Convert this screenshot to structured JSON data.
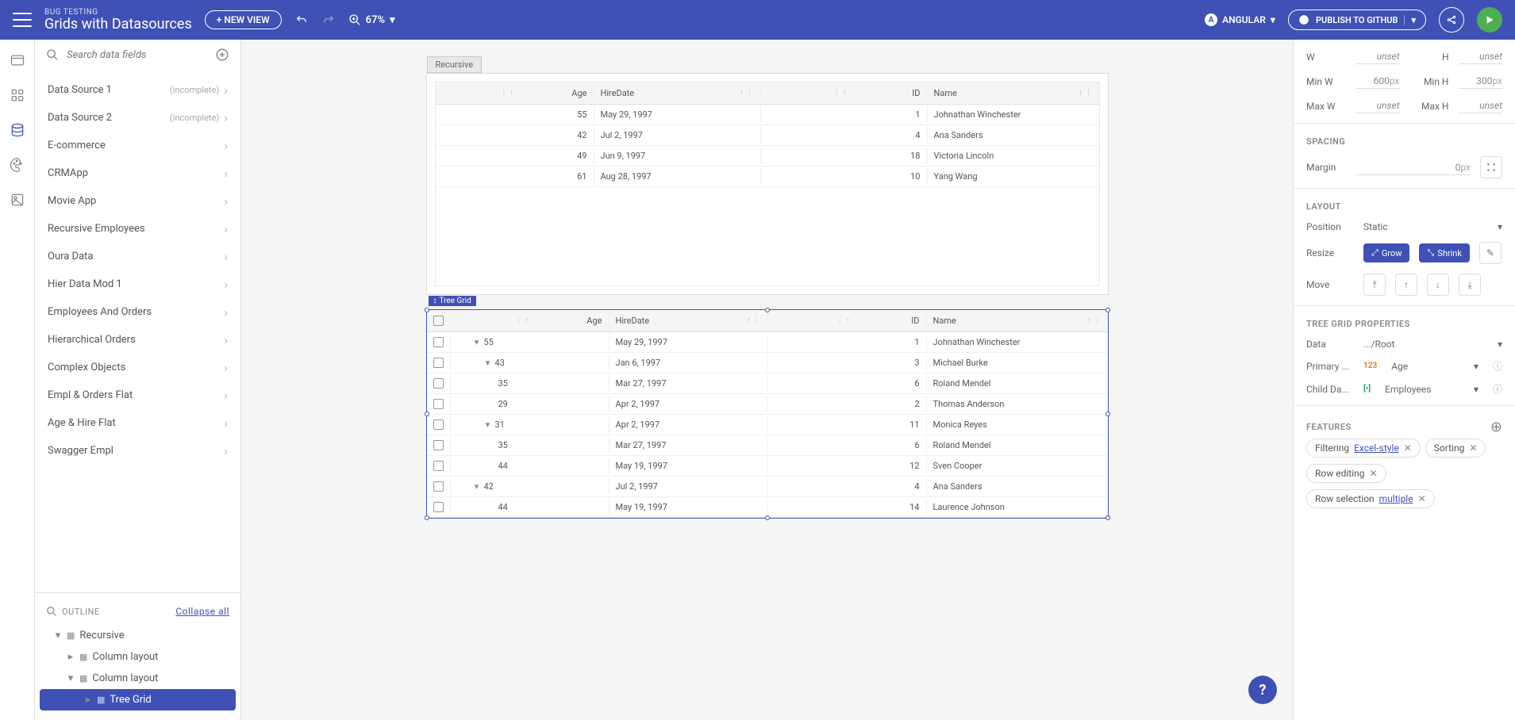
{
  "header": {
    "subtitle": "BUG TESTING",
    "title": "Grids with Datasources",
    "newView": "+ NEW VIEW",
    "zoom": "67%",
    "framework": "ANGULAR",
    "publish": "PUBLISH TO GITHUB"
  },
  "search": {
    "placeholder": "Search data fields"
  },
  "datasources": [
    {
      "name": "Data Source 1",
      "tag": "(incomplete)"
    },
    {
      "name": "Data Source 2",
      "tag": "(incomplete)"
    },
    {
      "name": "E-commerce"
    },
    {
      "name": "CRMApp"
    },
    {
      "name": "Movie App"
    },
    {
      "name": "Recursive Employees"
    },
    {
      "name": "Oura Data"
    },
    {
      "name": "Hier Data Mod 1"
    },
    {
      "name": "Employees And Orders"
    },
    {
      "name": "Hierarchical Orders"
    },
    {
      "name": "Complex Objects"
    },
    {
      "name": "Empl & Orders Flat"
    },
    {
      "name": "Age & Hire Flat"
    },
    {
      "name": "Swagger Empl"
    }
  ],
  "outline": {
    "title": "OUTLINE",
    "collapse": "Collapse all",
    "nodes": [
      {
        "label": "Recursive",
        "depth": 0,
        "icon": "layout",
        "expand": "down"
      },
      {
        "label": "Column layout",
        "depth": 1,
        "icon": "col",
        "expand": "right"
      },
      {
        "label": "Column layout",
        "depth": 1,
        "icon": "col",
        "expand": "down"
      },
      {
        "label": "Tree Grid",
        "depth": 2,
        "icon": "grid",
        "expand": "right",
        "selected": true
      }
    ]
  },
  "canvas": {
    "frame1": {
      "tab": "Recursive",
      "columns": [
        "Age",
        "HireDate",
        "ID",
        "Name"
      ],
      "rows": [
        {
          "age": "55",
          "hire": "May 29, 1997",
          "id": "1",
          "name": "Johnathan Winchester"
        },
        {
          "age": "42",
          "hire": "Jul 2, 1997",
          "id": "4",
          "name": "Ana Sanders"
        },
        {
          "age": "49",
          "hire": "Jun 9, 1997",
          "id": "18",
          "name": "Victoria Lincoln"
        },
        {
          "age": "61",
          "hire": "Aug 28, 1997",
          "id": "10",
          "name": "Yang Wang"
        }
      ]
    },
    "frame2": {
      "label": "Tree Grid",
      "columns": [
        "Age",
        "HireDate",
        "ID",
        "Name"
      ],
      "rows": [
        {
          "depth": 0,
          "exp": "down",
          "age": "55",
          "hire": "May 29, 1997",
          "id": "1",
          "name": "Johnathan Winchester"
        },
        {
          "depth": 1,
          "exp": "down",
          "age": "43",
          "hire": "Jan 6, 1997",
          "id": "3",
          "name": "Michael Burke"
        },
        {
          "depth": 2,
          "age": "35",
          "hire": "Mar 27, 1997",
          "id": "6",
          "name": "Roland Mendel"
        },
        {
          "depth": 2,
          "age": "29",
          "hire": "Apr 2, 1997",
          "id": "2",
          "name": "Thomas Anderson"
        },
        {
          "depth": 1,
          "exp": "down",
          "age": "31",
          "hire": "Apr 2, 1997",
          "id": "11",
          "name": "Monica Reyes"
        },
        {
          "depth": 2,
          "age": "35",
          "hire": "Mar 27, 1997",
          "id": "6",
          "name": "Roland Mendel"
        },
        {
          "depth": 2,
          "age": "44",
          "hire": "May 19, 1997",
          "id": "12",
          "name": "Sven Cooper"
        },
        {
          "depth": 0,
          "exp": "down",
          "age": "42",
          "hire": "Jul 2, 1997",
          "id": "4",
          "name": "Ana Sanders"
        },
        {
          "depth": 2,
          "age": "44",
          "hire": "May 19, 1997",
          "id": "14",
          "name": "Laurence Johnson"
        }
      ]
    }
  },
  "props": {
    "size": {
      "w": "unset",
      "h": "unset",
      "minw": "600",
      "minwu": "px",
      "minh": "300",
      "minhu": "px",
      "maxw": "unset",
      "maxh": "unset"
    },
    "spacing": {
      "title": "SPACING",
      "marginLabel": "Margin",
      "margin": "0",
      "marginu": "px"
    },
    "layout": {
      "title": "LAYOUT",
      "positionLabel": "Position",
      "position": "Static",
      "resizeLabel": "Resize",
      "grow": "Grow",
      "shrink": "Shrink",
      "moveLabel": "Move"
    },
    "treegrid": {
      "title": "TREE GRID PROPERTIES",
      "dataLabel": "Data",
      "data": ".../Root",
      "primaryLabel": "Primary ...",
      "primaryType": "123",
      "primary": "Age",
      "childLabel": "Child Da...",
      "childType": "[•]",
      "child": "Employees"
    },
    "features": {
      "title": "FEATURES",
      "chips": [
        {
          "label": "Filtering",
          "link": "Excel-style",
          "x": true
        },
        {
          "label": "Sorting",
          "x": true
        },
        {
          "label": "Row editing",
          "x": true
        },
        {
          "label": "Row selection",
          "link": "multiple",
          "x": true
        }
      ]
    }
  },
  "colors": {
    "primary": "#3f51b5",
    "bg": "#f5f5f5",
    "border": "#e0e0e0",
    "text": "#555",
    "green": "#4caf50"
  }
}
